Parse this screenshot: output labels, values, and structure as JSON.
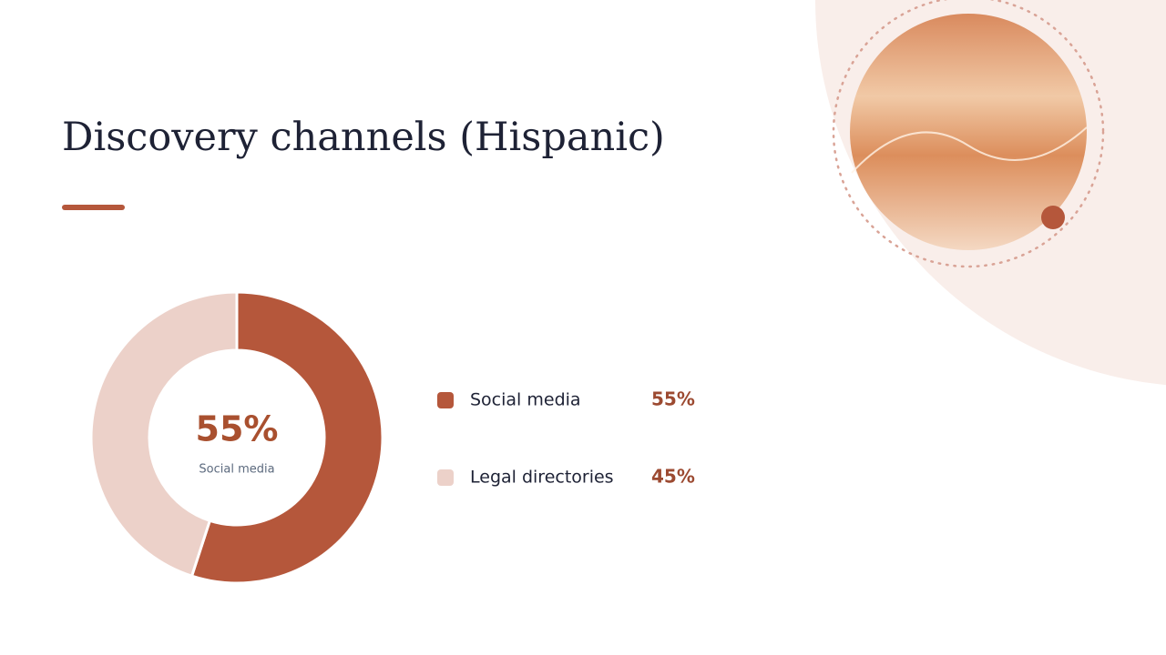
{
  "chart_data": {
    "type": "pie",
    "title": "Discovery channels (Hispanic)",
    "categories": [
      "Social media",
      "Legal directories"
    ],
    "values": [
      55,
      45
    ],
    "value_labels": [
      "55%",
      "45%"
    ],
    "colors": [
      "#b5573b",
      "#ecd1c9"
    ]
  }
}
